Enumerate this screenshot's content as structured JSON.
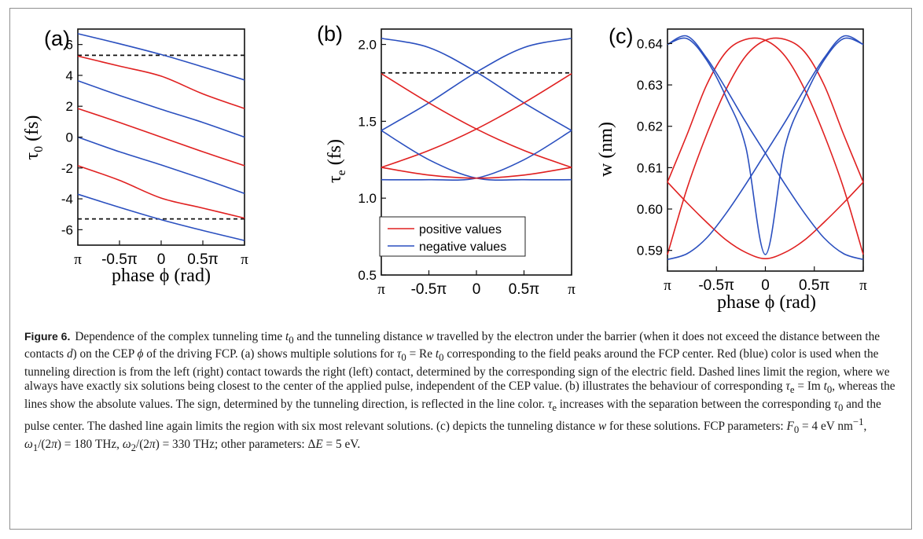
{
  "figure": {
    "label": "Figure 6.",
    "caption_html": "Dependence of the complex tunneling time <i>t</i><sub>0</sub> and the tunneling distance <i>w</i> travelled by the electron under the barrier (when it does not exceed the distance between the contacts <i>d</i>) on the CEP <i>&#981;</i> of the driving FCP. (a) shows multiple solutions for <i>&#964;</i><sub>0</sub> = Re <i>t</i><sub>0</sub> corresponding to the field peaks around the FCP center. Red (blue) color is used when the tunneling direction is from the left (right) contact towards the right (left) contact, determined by the corresponding sign of the electric field. Dashed lines limit the region, where we always have exactly six solutions being closest to the center of the applied pulse, independent of the CEP value. (b) illustrates the behaviour of corresponding <i>&#964;</i><sub>e</sub> = Im <i>t</i><sub>0</sub>, whereas the lines show the absolute values. The sign, determined by the tunneling direction, is reflected in the line color. <i>&#964;</i><sub>e</sub> increases with the separation between the corresponding <i>&#964;</i><sub>0</sub> and the pulse center. The dashed line again limits the region with six most relevant solutions. (c) depicts the tunneling distance <i>w</i> for these solutions. FCP parameters: <i>F</i><sub>0</sub> = 4 eV nm<sup>&#8722;1</sup>, <i>&#969;</i><sub>1</sub>/(2<i>&#960;</i>) = 180 THz, <i>&#969;</i><sub>2</sub>/(2<i>&#960;</i>) = 330 THz; other parameters: &#916;<i>E</i> = 5 eV."
  },
  "colors": {
    "red": "#e02020",
    "blue": "#2a4fbf",
    "dashed": "#111111",
    "axis": "#111111"
  },
  "chart_data": [
    {
      "panel_label": "(a)",
      "type": "line",
      "xlabel": "phase ϕ (rad)",
      "ylabel": "τ0 (fs)",
      "xticks": [
        "π",
        "-0.5π",
        "0",
        "0.5π",
        "π"
      ],
      "xlim": [
        -3.1416,
        3.1416
      ],
      "ylim": [
        -7,
        7
      ],
      "yticks": [
        "6",
        "4",
        "2",
        "0",
        "-2",
        "-4",
        "-6"
      ],
      "x": [
        -3.1416,
        -1.5708,
        0,
        1.5708,
        3.1416
      ],
      "hlines": [
        5.3,
        -5.3
      ],
      "series": [
        {
          "color": "blue",
          "values": [
            6.7,
            6.05,
            5.35,
            4.55,
            3.7
          ]
        },
        {
          "color": "red",
          "values": [
            5.25,
            4.6,
            3.95,
            2.8,
            1.85
          ]
        },
        {
          "color": "blue",
          "values": [
            3.65,
            2.7,
            1.8,
            0.95,
            0.0
          ]
        },
        {
          "color": "red",
          "values": [
            1.85,
            0.95,
            0.0,
            -0.95,
            -1.85
          ]
        },
        {
          "color": "blue",
          "values": [
            0.0,
            -0.95,
            -1.8,
            -2.7,
            -3.65
          ]
        },
        {
          "color": "red",
          "values": [
            -1.85,
            -2.8,
            -3.95,
            -4.6,
            -5.25
          ]
        },
        {
          "color": "blue",
          "values": [
            -3.7,
            -4.55,
            -5.35,
            -6.05,
            -6.7
          ]
        }
      ]
    },
    {
      "panel_label": "(b)",
      "type": "line",
      "xlabel": "",
      "ylabel": "τe (fs)",
      "xticks": [
        "π",
        "-0.5π",
        "0",
        "0.5π",
        "π"
      ],
      "xlim": [
        -3.1416,
        3.1416
      ],
      "ylim": [
        0.5,
        2.1
      ],
      "yticks": [
        "2.0",
        "1.5",
        "1.0",
        "0.5"
      ],
      "x": [
        -3.1416,
        -1.5708,
        0,
        1.5708,
        3.1416
      ],
      "hlines": [
        1.815
      ],
      "legend": {
        "position": "bottom-center",
        "entries": [
          {
            "label": "positive values",
            "color": "red"
          },
          {
            "label": "negative values",
            "color": "blue"
          }
        ]
      },
      "series": [
        {
          "color": "blue",
          "values": [
            2.04,
            1.98,
            1.82,
            1.62,
            1.44
          ]
        },
        {
          "color": "blue",
          "values": [
            1.44,
            1.62,
            1.82,
            1.98,
            2.04
          ]
        },
        {
          "color": "red",
          "values": [
            1.81,
            1.62,
            1.45,
            1.31,
            1.2
          ]
        },
        {
          "color": "red",
          "values": [
            1.2,
            1.31,
            1.45,
            1.62,
            1.81
          ]
        },
        {
          "color": "blue",
          "values": [
            1.44,
            1.25,
            1.13,
            1.12,
            1.12
          ]
        },
        {
          "color": "blue",
          "values": [
            1.12,
            1.12,
            1.13,
            1.25,
            1.44
          ]
        },
        {
          "color": "red",
          "values": [
            1.2,
            1.15,
            1.13,
            1.15,
            1.2
          ]
        }
      ]
    },
    {
      "panel_label": "(c)",
      "type": "line",
      "xlabel": "phase ϕ (rad)",
      "ylabel": "w (nm)",
      "xticks": [
        "π",
        "-0.5π",
        "0",
        "0.5π",
        "π"
      ],
      "xlim": [
        -3.1416,
        3.1416
      ],
      "ylim": [
        0.585,
        0.6435
      ],
      "yticks": [
        "0.64",
        "0.63",
        "0.62",
        "0.61",
        "0.60",
        "0.59"
      ],
      "x": [
        -3.1416,
        -2.5133,
        -1.885,
        -1.2566,
        -0.6283,
        0,
        0.6283,
        1.2566,
        1.885,
        2.5133,
        3.1416
      ],
      "series": [
        {
          "color": "red",
          "values": [
            0.6065,
            0.6015,
            0.5968,
            0.5925,
            0.5895,
            0.588,
            0.5895,
            0.5925,
            0.5968,
            0.6015,
            0.6065
          ]
        },
        {
          "color": "red",
          "values": [
            0.589,
            0.605,
            0.618,
            0.629,
            0.637,
            0.6408,
            0.641,
            0.638,
            0.63,
            0.618,
            0.6065
          ]
        },
        {
          "color": "red",
          "values": [
            0.6065,
            0.618,
            0.63,
            0.638,
            0.641,
            0.6408,
            0.637,
            0.629,
            0.618,
            0.605,
            0.589
          ]
        },
        {
          "color": "blue",
          "values": [
            0.5878,
            0.5892,
            0.593,
            0.599,
            0.606,
            0.6135,
            0.621,
            0.629,
            0.6365,
            0.6418,
            0.6398
          ]
        },
        {
          "color": "blue",
          "values": [
            0.6398,
            0.6418,
            0.6365,
            0.629,
            0.621,
            0.6135,
            0.606,
            0.599,
            0.593,
            0.5892,
            0.5878
          ]
        },
        {
          "color": "blue",
          "values": [
            0.6398,
            0.6412,
            0.636,
            0.627,
            0.615,
            0.589,
            0.615,
            0.627,
            0.636,
            0.6412,
            0.6398
          ]
        }
      ]
    }
  ]
}
